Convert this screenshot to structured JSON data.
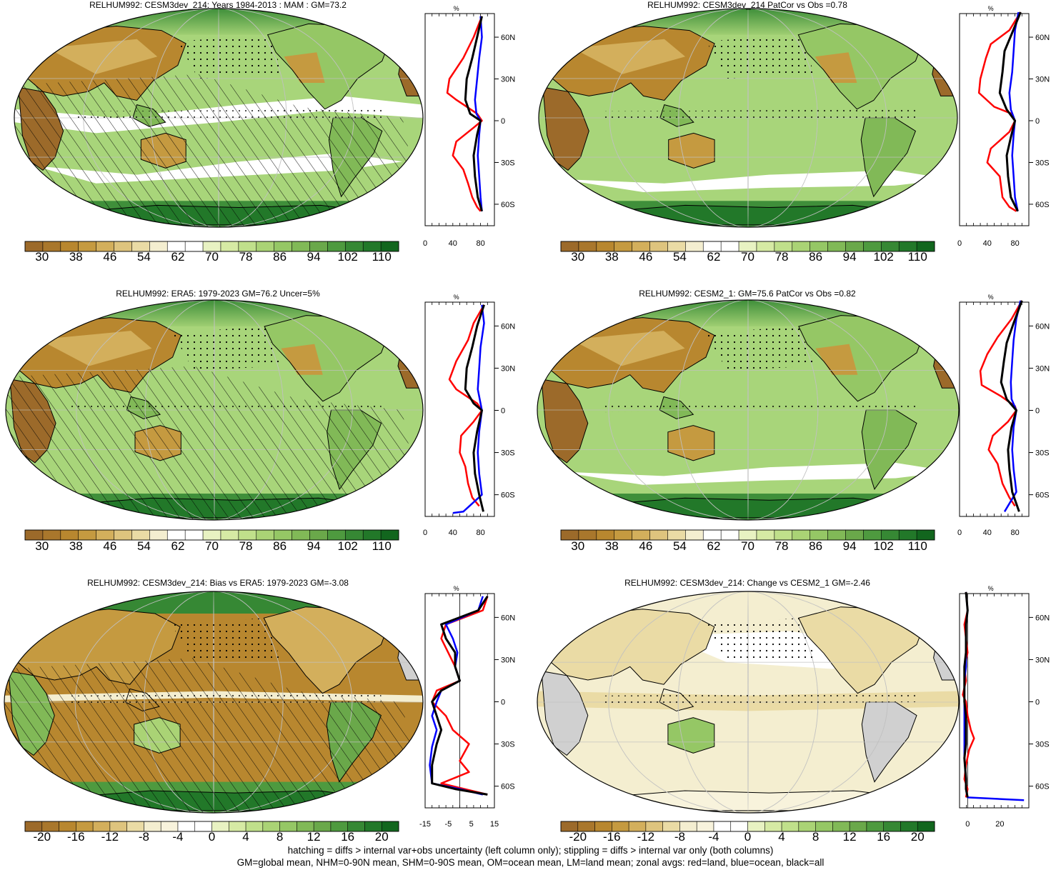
{
  "chart_data": [
    {
      "type": "heatmap",
      "panel": "map",
      "title": "RELHUM992: CESM3dev_214: Years 1984-2013 : MAM : GM=73.2",
      "colorbar_ticks": [
        "30",
        "38",
        "46",
        "54",
        "62",
        "70",
        "78",
        "86",
        "94",
        "102",
        "110"
      ],
      "zonal": {
        "xticks": [
          "0",
          "40",
          "80"
        ],
        "xlim": [
          0,
          100
        ],
        "yticks": [
          "60N",
          "30N",
          "0",
          "30S",
          "60S"
        ],
        "red": [
          [
            82,
            75
          ],
          [
            70,
            60
          ],
          [
            55,
            45
          ],
          [
            35,
            30
          ],
          [
            32,
            20
          ],
          [
            45,
            15
          ],
          [
            75,
            5
          ],
          [
            82,
            0
          ],
          [
            70,
            -5
          ],
          [
            45,
            -15
          ],
          [
            40,
            -25
          ],
          [
            55,
            -35
          ],
          [
            62,
            -45
          ],
          [
            68,
            -55
          ],
          [
            75,
            -62
          ],
          [
            80,
            -65
          ]
        ],
        "blue": [
          [
            80,
            75
          ],
          [
            82,
            60
          ],
          [
            78,
            45
          ],
          [
            75,
            30
          ],
          [
            72,
            15
          ],
          [
            74,
            5
          ],
          [
            80,
            0
          ],
          [
            78,
            -10
          ],
          [
            76,
            -25
          ],
          [
            78,
            -40
          ],
          [
            80,
            -55
          ],
          [
            82,
            -65
          ]
        ],
        "black": [
          [
            82,
            75
          ],
          [
            75,
            60
          ],
          [
            68,
            45
          ],
          [
            60,
            30
          ],
          [
            58,
            15
          ],
          [
            65,
            5
          ],
          [
            80,
            0
          ],
          [
            75,
            -10
          ],
          [
            70,
            -25
          ],
          [
            72,
            -40
          ],
          [
            76,
            -55
          ],
          [
            82,
            -65
          ]
        ]
      }
    },
    {
      "type": "heatmap",
      "panel": "map",
      "title": "RELHUM992: CESM3dev_214 PatCor vs Obs =0.78",
      "colorbar_ticks": [
        "30",
        "38",
        "46",
        "54",
        "62",
        "70",
        "78",
        "86",
        "94",
        "102",
        "110"
      ],
      "zonal": {
        "xticks": [
          "0",
          "40",
          "80"
        ],
        "xlim": [
          0,
          100
        ],
        "yticks": [
          "60N",
          "30N",
          "0",
          "30S",
          "60S"
        ],
        "red": [
          [
            88,
            78
          ],
          [
            72,
            65
          ],
          [
            45,
            55
          ],
          [
            38,
            45
          ],
          [
            30,
            30
          ],
          [
            28,
            20
          ],
          [
            50,
            10
          ],
          [
            75,
            5
          ],
          [
            80,
            0
          ],
          [
            72,
            -8
          ],
          [
            45,
            -20
          ],
          [
            40,
            -30
          ],
          [
            58,
            -40
          ],
          [
            62,
            -55
          ],
          [
            72,
            -62
          ],
          [
            82,
            -65
          ]
        ],
        "blue": [
          [
            85,
            78
          ],
          [
            80,
            65
          ],
          [
            78,
            50
          ],
          [
            76,
            35
          ],
          [
            72,
            20
          ],
          [
            74,
            8
          ],
          [
            80,
            0
          ],
          [
            78,
            -10
          ],
          [
            76,
            -25
          ],
          [
            78,
            -40
          ],
          [
            80,
            -55
          ],
          [
            84,
            -65
          ]
        ],
        "black": [
          [
            88,
            78
          ],
          [
            75,
            62
          ],
          [
            65,
            50
          ],
          [
            62,
            35
          ],
          [
            58,
            20
          ],
          [
            68,
            8
          ],
          [
            80,
            0
          ],
          [
            74,
            -12
          ],
          [
            68,
            -25
          ],
          [
            70,
            -40
          ],
          [
            74,
            -55
          ],
          [
            84,
            -65
          ]
        ]
      }
    },
    {
      "type": "heatmap",
      "panel": "map",
      "title": "RELHUM992: ERA5: 1979-2023 GM=76.2 Uncer=5%",
      "colorbar_ticks": [
        "30",
        "38",
        "46",
        "54",
        "62",
        "70",
        "78",
        "86",
        "94",
        "102",
        "110"
      ],
      "zonal": {
        "xticks": [
          "0",
          "40",
          "80"
        ],
        "xlim": [
          0,
          100
        ],
        "yticks": [
          "60N",
          "30N",
          "0",
          "30S",
          "60S"
        ],
        "red": [
          [
            85,
            75
          ],
          [
            70,
            62
          ],
          [
            62,
            50
          ],
          [
            45,
            35
          ],
          [
            35,
            22
          ],
          [
            45,
            15
          ],
          [
            75,
            5
          ],
          [
            82,
            0
          ],
          [
            70,
            -8
          ],
          [
            52,
            -18
          ],
          [
            50,
            -30
          ],
          [
            58,
            -40
          ],
          [
            62,
            -52
          ],
          [
            68,
            -62
          ],
          [
            78,
            -68
          ]
        ],
        "blue": [
          [
            82,
            75
          ],
          [
            85,
            62
          ],
          [
            80,
            45
          ],
          [
            78,
            30
          ],
          [
            76,
            15
          ],
          [
            80,
            5
          ],
          [
            82,
            0
          ],
          [
            78,
            -15
          ],
          [
            76,
            -30
          ],
          [
            78,
            -45
          ],
          [
            82,
            -60
          ],
          [
            55,
            -72
          ],
          [
            40,
            -73
          ]
        ],
        "black": [
          [
            85,
            75
          ],
          [
            75,
            60
          ],
          [
            68,
            45
          ],
          [
            60,
            30
          ],
          [
            58,
            15
          ],
          [
            70,
            5
          ],
          [
            82,
            0
          ],
          [
            75,
            -15
          ],
          [
            70,
            -30
          ],
          [
            72,
            -45
          ],
          [
            78,
            -60
          ],
          [
            84,
            -72
          ]
        ]
      }
    },
    {
      "type": "heatmap",
      "panel": "map",
      "title": "RELHUM992: CESM2_1: GM=75.6 PatCor vs Obs =0.82",
      "colorbar_ticks": [
        "30",
        "38",
        "46",
        "54",
        "62",
        "70",
        "78",
        "86",
        "94",
        "102",
        "110"
      ],
      "zonal": {
        "xticks": [
          "0",
          "40",
          "80"
        ],
        "xlim": [
          0,
          100
        ],
        "yticks": [
          "60N",
          "30N",
          "0",
          "30S",
          "60S"
        ],
        "red": [
          [
            90,
            78
          ],
          [
            75,
            65
          ],
          [
            55,
            52
          ],
          [
            40,
            40
          ],
          [
            30,
            28
          ],
          [
            32,
            18
          ],
          [
            60,
            10
          ],
          [
            80,
            3
          ],
          [
            82,
            0
          ],
          [
            70,
            -8
          ],
          [
            48,
            -18
          ],
          [
            42,
            -28
          ],
          [
            55,
            -38
          ],
          [
            62,
            -52
          ],
          [
            72,
            -62
          ],
          [
            80,
            -68
          ]
        ],
        "blue": [
          [
            88,
            78
          ],
          [
            82,
            65
          ],
          [
            78,
            50
          ],
          [
            76,
            35
          ],
          [
            74,
            20
          ],
          [
            75,
            8
          ],
          [
            82,
            0
          ],
          [
            78,
            -12
          ],
          [
            76,
            -28
          ],
          [
            78,
            -42
          ],
          [
            82,
            -58
          ],
          [
            65,
            -72
          ]
        ],
        "black": [
          [
            90,
            78
          ],
          [
            78,
            62
          ],
          [
            68,
            48
          ],
          [
            64,
            35
          ],
          [
            60,
            20
          ],
          [
            68,
            8
          ],
          [
            82,
            0
          ],
          [
            75,
            -12
          ],
          [
            70,
            -28
          ],
          [
            72,
            -42
          ],
          [
            76,
            -58
          ],
          [
            86,
            -72
          ]
        ]
      }
    },
    {
      "type": "heatmap",
      "panel": "map",
      "title": "RELHUM992: CESM3dev_214: Bias vs ERA5: 1979-2023 GM=-3.08",
      "colorbar_ticks": [
        "-20",
        "-16",
        "-12",
        "-8",
        "-4",
        "0",
        "4",
        "8",
        "12",
        "16",
        "20"
      ],
      "zonal": {
        "xticks": [
          "-15",
          "-5",
          "5",
          "15"
        ],
        "xlim": [
          -15,
          15
        ],
        "yticks": [
          "60N",
          "30N",
          "0",
          "30S",
          "60S"
        ],
        "red": [
          [
            12,
            75
          ],
          [
            10,
            65
          ],
          [
            -6,
            55
          ],
          [
            -8,
            45
          ],
          [
            -5,
            35
          ],
          [
            -2,
            25
          ],
          [
            0,
            15
          ],
          [
            -10,
            8
          ],
          [
            -12,
            0
          ],
          [
            -6,
            -10
          ],
          [
            -3,
            -20
          ],
          [
            4,
            -30
          ],
          [
            0,
            -42
          ],
          [
            4,
            -50
          ],
          [
            -8,
            -58
          ],
          [
            2,
            -62
          ],
          [
            12,
            -66
          ]
        ],
        "blue": [
          [
            10,
            75
          ],
          [
            8,
            65
          ],
          [
            -6,
            55
          ],
          [
            -3,
            45
          ],
          [
            -1,
            35
          ],
          [
            -2,
            25
          ],
          [
            0,
            15
          ],
          [
            -8,
            8
          ],
          [
            -10,
            0
          ],
          [
            -12,
            -10
          ],
          [
            -10,
            -20
          ],
          [
            -12,
            -32
          ],
          [
            -13,
            -45
          ],
          [
            -12,
            -58
          ],
          [
            0,
            -62
          ],
          [
            10,
            -66
          ]
        ],
        "black": [
          [
            12,
            75
          ],
          [
            8,
            65
          ],
          [
            -8,
            55
          ],
          [
            -6,
            45
          ],
          [
            -2,
            35
          ],
          [
            -2,
            25
          ],
          [
            0,
            15
          ],
          [
            -8,
            8
          ],
          [
            -12,
            0
          ],
          [
            -10,
            -10
          ],
          [
            -8,
            -20
          ],
          [
            -10,
            -30
          ],
          [
            -12,
            -45
          ],
          [
            -12,
            -58
          ],
          [
            -2,
            -62
          ],
          [
            12,
            -66
          ]
        ]
      }
    },
    {
      "type": "heatmap",
      "panel": "map",
      "title": "RELHUM992: CESM3dev_214: Change vs CESM2_1 GM=-2.46",
      "colorbar_ticks": [
        "-20",
        "-16",
        "-12",
        "-8",
        "-4",
        "0",
        "4",
        "8",
        "12",
        "16",
        "20"
      ],
      "zonal": {
        "xticks": [
          "0",
          "20"
        ],
        "xlim": [
          -5,
          38
        ],
        "yticks": [
          "60N",
          "30N",
          "0",
          "30S",
          "60S"
        ],
        "red": [
          [
            -1,
            78
          ],
          [
            0,
            65
          ],
          [
            -2,
            55
          ],
          [
            -1,
            45
          ],
          [
            0,
            35
          ],
          [
            -2,
            25
          ],
          [
            -1,
            15
          ],
          [
            -3,
            5
          ],
          [
            -1,
            0
          ],
          [
            0,
            -10
          ],
          [
            2,
            -20
          ],
          [
            4,
            -26
          ],
          [
            1,
            -34
          ],
          [
            -1,
            -45
          ],
          [
            -2,
            -55
          ],
          [
            0,
            -62
          ],
          [
            -1,
            -68
          ]
        ],
        "blue": [
          [
            -1,
            78
          ],
          [
            0,
            65
          ],
          [
            -1,
            55
          ],
          [
            -1,
            45
          ],
          [
            -1,
            35
          ],
          [
            -1,
            25
          ],
          [
            -2,
            15
          ],
          [
            -2,
            5
          ],
          [
            -2,
            0
          ],
          [
            -2,
            -10
          ],
          [
            -2,
            -20
          ],
          [
            -2,
            -30
          ],
          [
            -2,
            -40
          ],
          [
            -1,
            -55
          ],
          [
            -1,
            -62
          ],
          [
            0,
            -68
          ],
          [
            35,
            -70
          ]
        ],
        "black": [
          [
            -1,
            78
          ],
          [
            0,
            65
          ],
          [
            -1,
            55
          ],
          [
            -1,
            45
          ],
          [
            -1,
            35
          ],
          [
            -2,
            25
          ],
          [
            -2,
            15
          ],
          [
            -2,
            5
          ],
          [
            -2,
            0
          ],
          [
            -1,
            -10
          ],
          [
            -1,
            -20
          ],
          [
            -1,
            -30
          ],
          [
            -2,
            -40
          ],
          [
            -1,
            -55
          ],
          [
            -1,
            -62
          ],
          [
            0,
            -68
          ]
        ]
      }
    }
  ],
  "seq_colors": [
    "#9c6a2a",
    "#a9772c",
    "#b8872f",
    "#c59a40",
    "#d3af5c",
    "#dec47e",
    "#eadba5",
    "#f4eed0",
    "#ffffff",
    "#ffffff",
    "#e8f2c2",
    "#d6eaa4",
    "#c0e08b",
    "#aad375",
    "#95c765",
    "#81b957",
    "#6aa84a",
    "#4e9a3f",
    "#368834",
    "#227829",
    "#12661e"
  ],
  "div_colors": [
    "#9c6a2a",
    "#a9772c",
    "#b8872f",
    "#c59a40",
    "#d3af5c",
    "#dec47e",
    "#eadba5",
    "#f4eed0",
    "#f8f3dc",
    "#ffffff",
    "#ffffff",
    "#e8f2c2",
    "#d6eaa4",
    "#c0e08b",
    "#aad375",
    "#95c765",
    "#81b957",
    "#6aa84a",
    "#4e9a3f",
    "#368834",
    "#227829",
    "#12661e"
  ],
  "line_colors": {
    "land": "#ff0000",
    "ocean": "#0000ff",
    "all": "#000000"
  },
  "pct_label": "%",
  "footer": {
    "line1": "hatching = diffs > internal var+obs uncertainty (left column only); stippling = diffs > internal var only (both columns)",
    "line2": "GM=global mean, NHM=0-90N mean, SHM=0-90S mean, OM=ocean mean, LM=land mean; zonal avgs: red=land, blue=ocean, black=all"
  }
}
